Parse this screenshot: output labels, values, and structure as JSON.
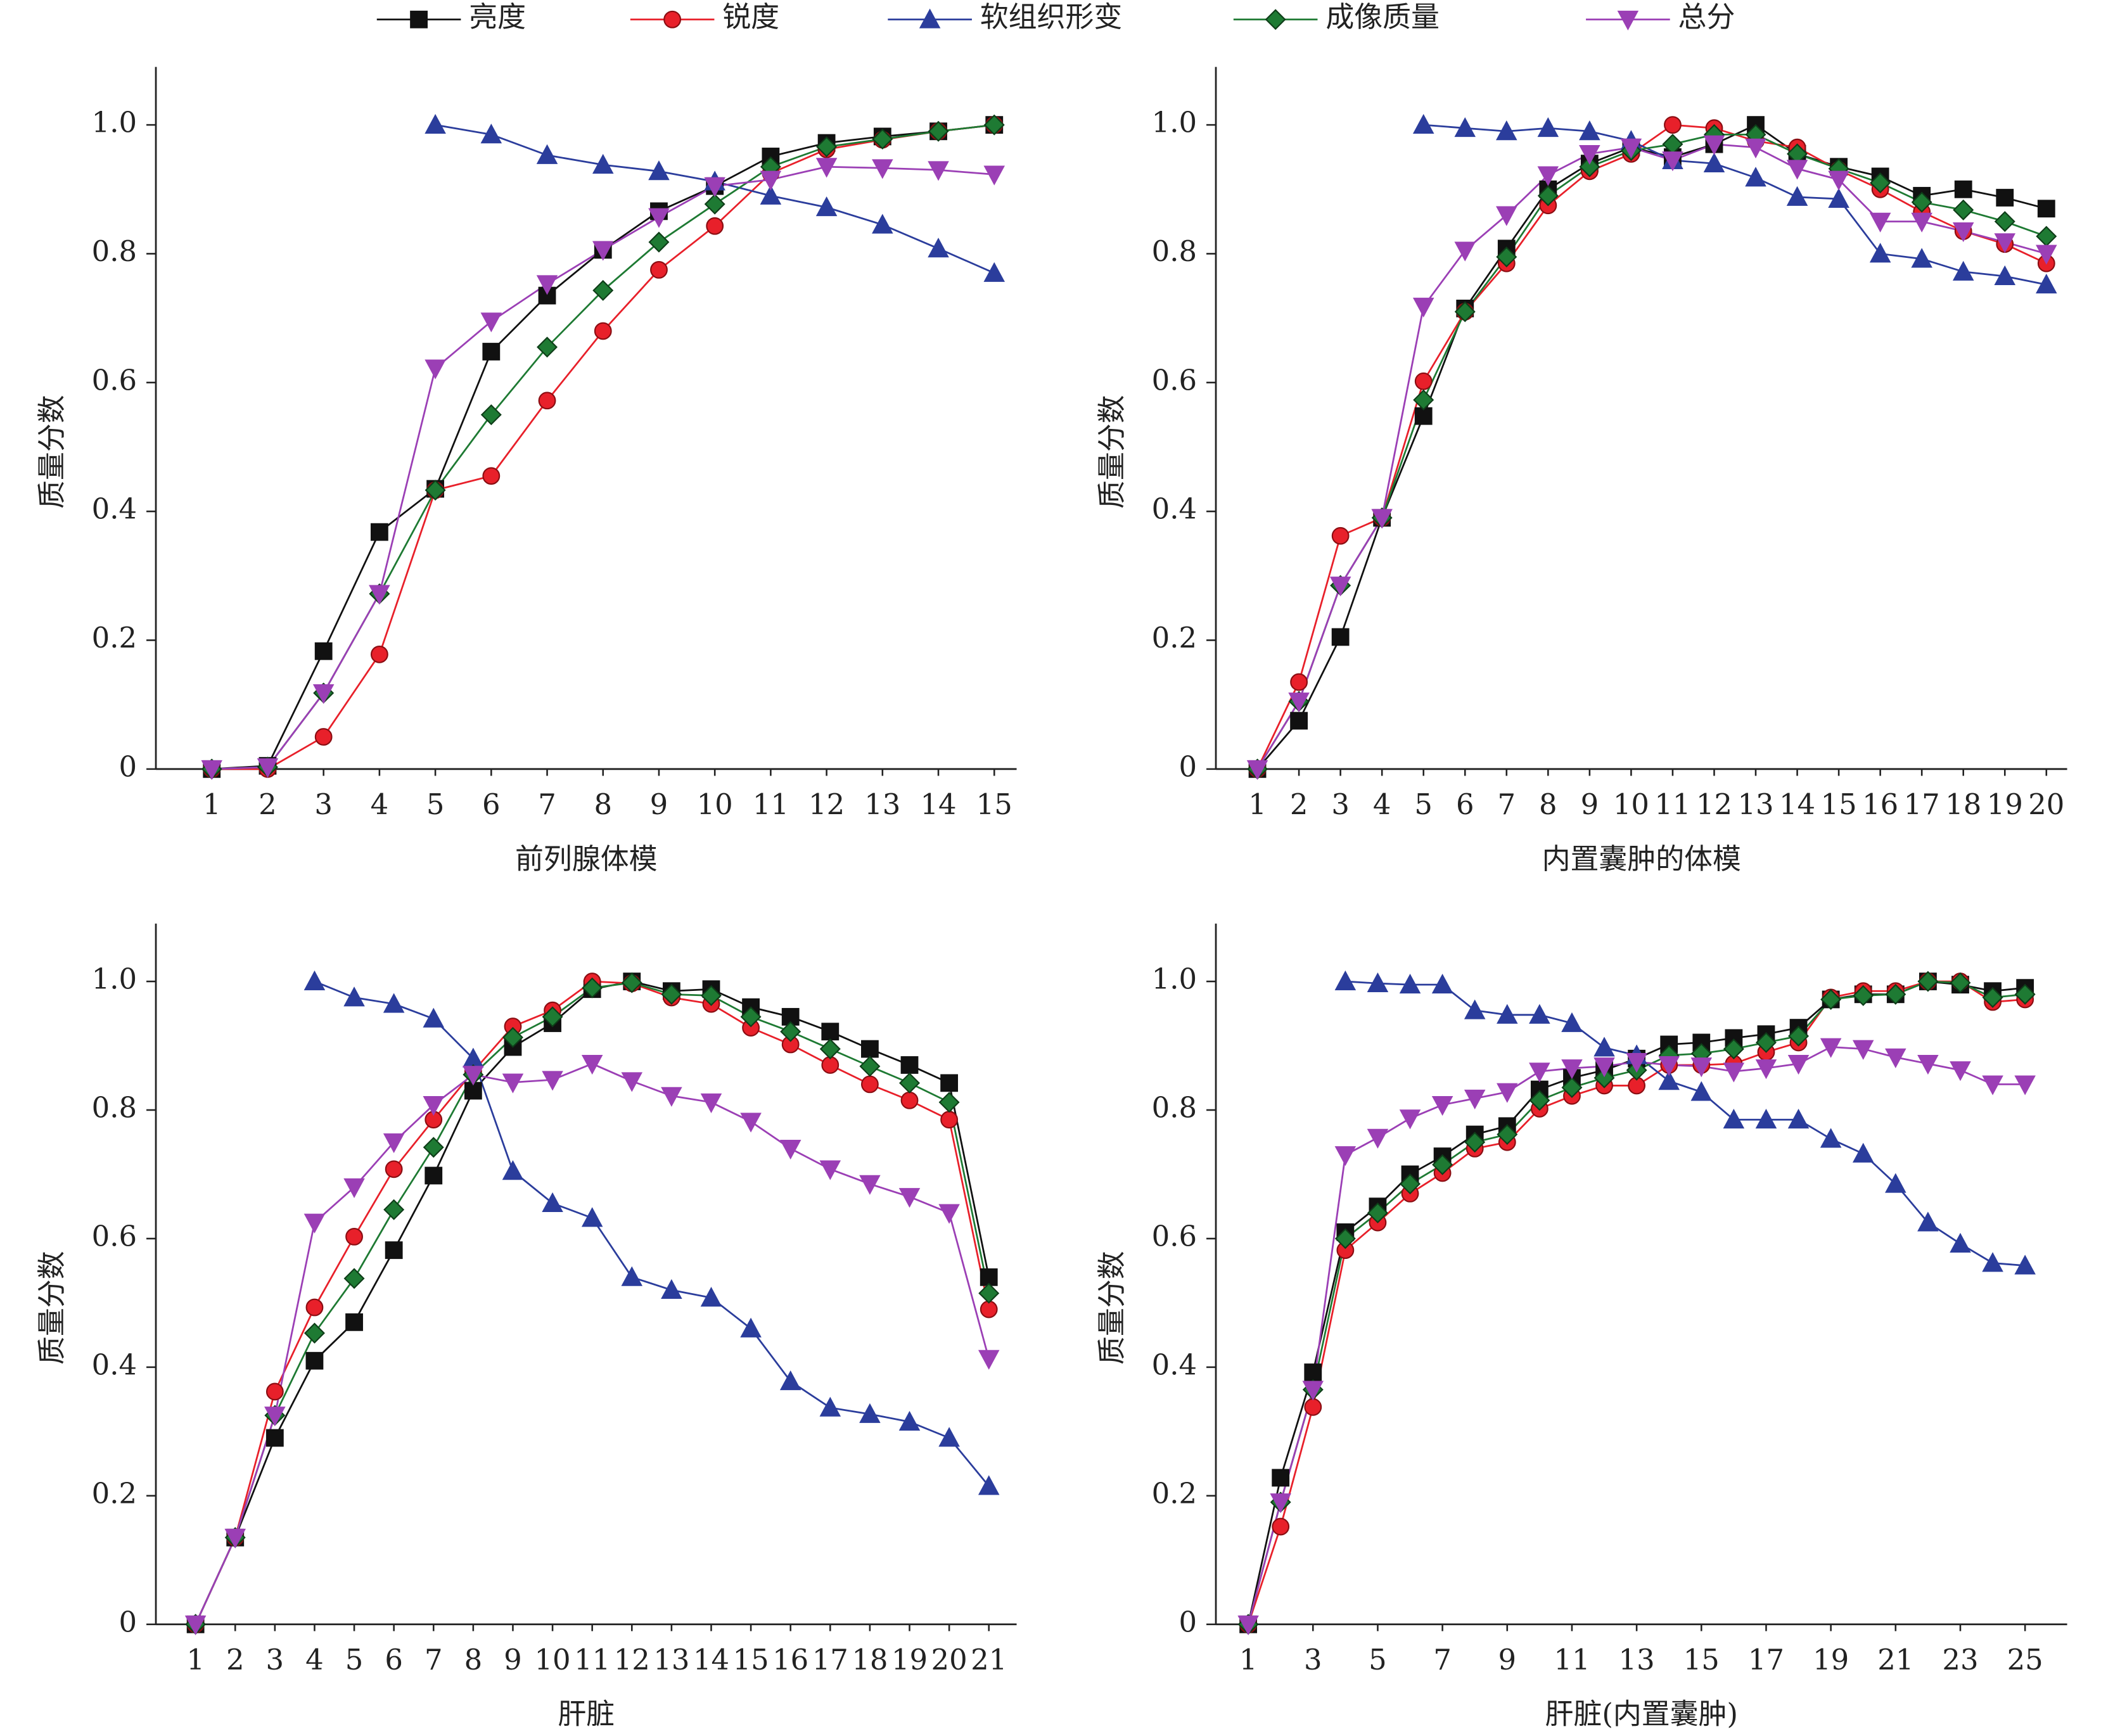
{
  "legend": [
    {
      "name": "亮度",
      "color": "#111111",
      "marker": "square"
    },
    {
      "name": "锐度",
      "color": "#e8202a",
      "marker": "circle"
    },
    {
      "name": "软组织形变",
      "color": "#2b3d9c",
      "marker": "triangle-up"
    },
    {
      "name": "成像质量",
      "color": "#1e7a33",
      "marker": "diamond"
    },
    {
      "name": "总分",
      "color": "#9b3fb5",
      "marker": "triangle-down"
    }
  ],
  "chart_data": [
    {
      "type": "line",
      "x_label": "前列腺体模",
      "y_label": "质量分数",
      "x": [
        1,
        2,
        3,
        4,
        5,
        6,
        7,
        8,
        9,
        10,
        11,
        12,
        13,
        14,
        15
      ],
      "xlim": [
        0,
        15.4
      ],
      "xticks": [
        1,
        2,
        3,
        4,
        5,
        6,
        7,
        8,
        9,
        10,
        11,
        12,
        13,
        14,
        15
      ],
      "ylim": [
        0,
        1.09
      ],
      "yticks": [
        0,
        0.2,
        0.4,
        0.6,
        0.8,
        {
          "value": 1,
          "label": "1.0"
        }
      ],
      "series": [
        {
          "values": [
            0,
            0.005,
            0.183,
            0.368,
            0.435,
            0.648,
            0.735,
            0.806,
            0.866,
            0.905,
            0.951,
            0.972,
            0.982,
            0.99,
            1.0
          ]
        },
        {
          "values": [
            0,
            0,
            0.05,
            0.178,
            0.433,
            0.455,
            0.572,
            0.68,
            0.775,
            0.843,
            0.925,
            0.962,
            0.977,
            0.99,
            1.0
          ]
        },
        {
          "values": [
            null,
            null,
            null,
            null,
            1.0,
            0.985,
            0.953,
            0.938,
            0.928,
            0.912,
            0.89,
            0.872,
            0.845,
            0.808,
            0.77
          ]
        },
        {
          "values": [
            0,
            0.003,
            0.118,
            0.272,
            0.433,
            0.55,
            0.655,
            0.743,
            0.818,
            0.877,
            0.935,
            0.966,
            0.978,
            0.99,
            1.0
          ]
        },
        {
          "values": [
            0,
            0.003,
            0.118,
            0.272,
            0.622,
            0.695,
            0.753,
            0.806,
            0.857,
            0.905,
            0.915,
            0.935,
            0.933,
            0.93,
            0.923
          ]
        }
      ]
    },
    {
      "type": "line",
      "x_label": "内置囊肿的体模",
      "y_label": "质量分数",
      "x": [
        1,
        2,
        3,
        4,
        5,
        6,
        7,
        8,
        9,
        10,
        11,
        12,
        13,
        14,
        15,
        16,
        17,
        18,
        19,
        20
      ],
      "xlim": [
        0,
        20.5
      ],
      "xticks": [
        1,
        2,
        3,
        4,
        5,
        6,
        7,
        8,
        9,
        10,
        11,
        12,
        13,
        14,
        15,
        16,
        17,
        18,
        19,
        20
      ],
      "ylim": [
        0,
        1.09
      ],
      "yticks": [
        0,
        0.2,
        0.4,
        0.6,
        0.8,
        {
          "value": 1,
          "label": "1.0"
        }
      ],
      "series": [
        {
          "values": [
            0,
            0.075,
            0.205,
            0.39,
            0.548,
            0.715,
            0.808,
            0.9,
            0.94,
            0.965,
            0.95,
            0.97,
            1.0,
            0.955,
            0.935,
            0.92,
            0.89,
            0.9,
            0.887,
            0.87
          ]
        },
        {
          "values": [
            0,
            0.135,
            0.362,
            0.39,
            0.602,
            0.71,
            0.785,
            0.875,
            0.928,
            0.955,
            1.0,
            0.995,
            0.975,
            0.965,
            0.93,
            0.9,
            0.865,
            0.835,
            0.815,
            0.785
          ]
        },
        {
          "values": [
            null,
            null,
            null,
            null,
            1.0,
            0.995,
            0.99,
            0.995,
            0.99,
            0.975,
            0.945,
            0.94,
            0.918,
            0.888,
            0.885,
            0.8,
            0.792,
            0.772,
            0.765,
            0.752
          ]
        },
        {
          "values": [
            0,
            0.105,
            0.285,
            0.39,
            0.573,
            0.71,
            0.795,
            0.89,
            0.935,
            0.96,
            0.97,
            0.985,
            0.985,
            0.955,
            0.932,
            0.91,
            0.88,
            0.868,
            0.85,
            0.827
          ]
        },
        {
          "values": [
            0,
            0.105,
            0.285,
            0.39,
            0.718,
            0.805,
            0.86,
            0.922,
            0.955,
            0.965,
            0.945,
            0.97,
            0.965,
            0.932,
            0.915,
            0.85,
            0.85,
            0.835,
            0.818,
            0.8
          ]
        }
      ]
    },
    {
      "type": "line",
      "x_label": "肝脏",
      "y_label": "质量分数",
      "x": [
        1,
        2,
        3,
        4,
        5,
        6,
        7,
        8,
        9,
        10,
        11,
        12,
        13,
        14,
        15,
        16,
        17,
        18,
        19,
        20,
        21
      ],
      "xlim": [
        0,
        21.7
      ],
      "xticks": [
        1,
        2,
        3,
        4,
        5,
        6,
        7,
        8,
        9,
        10,
        11,
        12,
        13,
        14,
        15,
        16,
        17,
        18,
        19,
        20,
        21
      ],
      "ylim": [
        0,
        1.09
      ],
      "yticks": [
        0,
        0.2,
        0.4,
        0.6,
        0.8,
        {
          "value": 1,
          "label": "1.0"
        }
      ],
      "series": [
        {
          "values": [
            0,
            0.135,
            0.29,
            0.41,
            0.47,
            0.582,
            0.698,
            0.83,
            0.898,
            0.935,
            0.988,
            1.0,
            0.985,
            0.988,
            0.96,
            0.945,
            0.922,
            0.895,
            0.87,
            0.842,
            0.54
          ]
        },
        {
          "values": [
            0,
            0.135,
            0.362,
            0.493,
            0.603,
            0.708,
            0.785,
            0.86,
            0.93,
            0.955,
            1.0,
            0.997,
            0.975,
            0.965,
            0.928,
            0.902,
            0.87,
            0.84,
            0.815,
            0.785,
            0.49
          ]
        },
        {
          "values": [
            null,
            null,
            null,
            1.0,
            0.975,
            0.965,
            0.942,
            0.88,
            0.705,
            0.655,
            0.632,
            0.54,
            0.52,
            0.508,
            0.46,
            0.378,
            0.337,
            0.327,
            0.315,
            0.29,
            0.215
          ]
        },
        {
          "values": [
            0,
            0.135,
            0.325,
            0.453,
            0.538,
            0.645,
            0.742,
            0.855,
            0.913,
            0.945,
            0.99,
            0.998,
            0.98,
            0.978,
            0.945,
            0.922,
            0.895,
            0.868,
            0.842,
            0.812,
            0.515
          ]
        },
        {
          "values": [
            0,
            0.135,
            0.325,
            0.625,
            0.68,
            0.75,
            0.808,
            0.855,
            0.843,
            0.847,
            0.872,
            0.845,
            0.822,
            0.812,
            0.782,
            0.74,
            0.708,
            0.685,
            0.665,
            0.64,
            0.413
          ]
        }
      ]
    },
    {
      "type": "line",
      "x_label": "肝脏(内置囊肿)",
      "y_label": "质量分数",
      "x": [
        1,
        2,
        3,
        4,
        5,
        6,
        7,
        8,
        9,
        10,
        11,
        12,
        13,
        14,
        15,
        16,
        17,
        18,
        19,
        20,
        21,
        22,
        23,
        24,
        25
      ],
      "xlim": [
        0,
        26.3
      ],
      "xticks": [
        1,
        3,
        5,
        7,
        9,
        11,
        13,
        15,
        17,
        19,
        21,
        23,
        25
      ],
      "ylim": [
        0,
        1.09
      ],
      "yticks": [
        0,
        0.2,
        0.4,
        0.6,
        0.8,
        {
          "value": 1,
          "label": "1.0"
        }
      ],
      "series": [
        {
          "values": [
            0,
            0.228,
            0.392,
            0.61,
            0.65,
            0.7,
            0.728,
            0.762,
            0.775,
            0.832,
            0.85,
            0.862,
            0.88,
            0.902,
            0.905,
            0.912,
            0.918,
            0.928,
            0.972,
            0.98,
            0.98,
            1.0,
            0.995,
            0.985,
            0.99
          ]
        },
        {
          "values": [
            0,
            0.152,
            0.338,
            0.582,
            0.625,
            0.67,
            0.702,
            0.74,
            0.75,
            0.802,
            0.822,
            0.838,
            0.838,
            0.87,
            0.87,
            0.872,
            0.89,
            0.905,
            0.975,
            0.985,
            0.985,
            1.0,
            1.0,
            0.968,
            0.972
          ]
        },
        {
          "values": [
            null,
            null,
            null,
            1.0,
            0.997,
            0.995,
            0.995,
            0.955,
            0.948,
            0.948,
            0.935,
            0.897,
            0.885,
            0.845,
            0.828,
            0.785,
            0.785,
            0.785,
            0.755,
            0.732,
            0.685,
            0.625,
            0.592,
            0.562,
            0.558
          ]
        },
        {
          "values": [
            0,
            0.19,
            0.365,
            0.6,
            0.64,
            0.685,
            0.715,
            0.75,
            0.762,
            0.815,
            0.835,
            0.85,
            0.862,
            0.885,
            0.888,
            0.895,
            0.905,
            0.915,
            0.972,
            0.978,
            0.98,
            1.0,
            0.998,
            0.975,
            0.98
          ]
        },
        {
          "values": [
            0,
            0.19,
            0.365,
            0.73,
            0.757,
            0.787,
            0.808,
            0.818,
            0.828,
            0.86,
            0.865,
            0.868,
            0.875,
            0.87,
            0.868,
            0.86,
            0.865,
            0.872,
            0.898,
            0.895,
            0.882,
            0.872,
            0.862,
            0.84,
            0.84
          ]
        }
      ]
    }
  ]
}
